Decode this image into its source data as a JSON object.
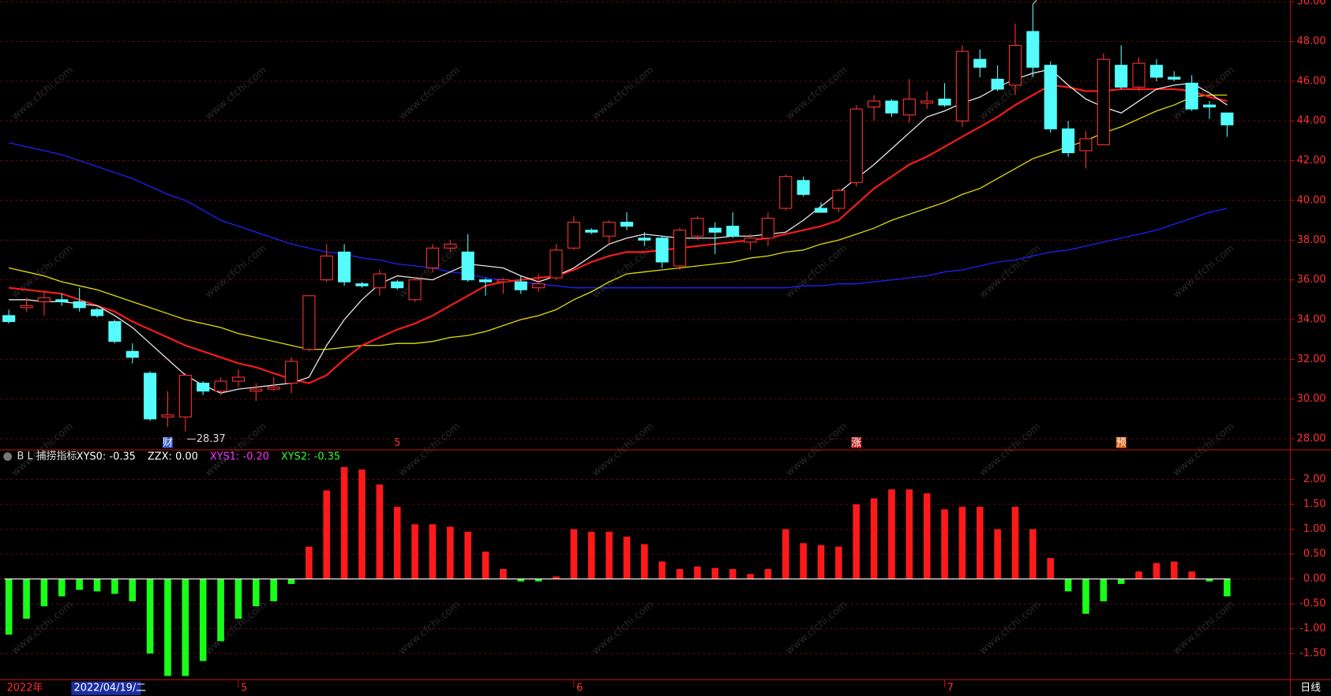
{
  "chart_data": [
    {
      "type": "candlestick",
      "up_color": "#ff3232",
      "down_color": "#54fcfc",
      "open": [
        34.2,
        34.6,
        34.9,
        35.0,
        34.9,
        34.5,
        33.9,
        32.4,
        31.3,
        29.1,
        29.1,
        30.8,
        30.4,
        30.9,
        30.4,
        30.5,
        30.8,
        32.5,
        36.0,
        37.4,
        35.8,
        35.6,
        35.9,
        35.0,
        36.6,
        37.6,
        37.4,
        36.0,
        35.9,
        35.9,
        35.6,
        36.1,
        37.6,
        38.5,
        38.2,
        38.9,
        38.1,
        38.1,
        36.7,
        38.2,
        38.6,
        38.7,
        37.9,
        38.1,
        39.6,
        41.0,
        39.6,
        39.6,
        40.9,
        44.7,
        45.0,
        44.3,
        44.9,
        45.1,
        44.0,
        47.1,
        46.1,
        45.8,
        48.5,
        46.8,
        43.6,
        42.5,
        42.8,
        46.8,
        45.7,
        46.8,
        46.2,
        45.9,
        44.8,
        44.4
      ],
      "high": [
        34.5,
        35.1,
        35.4,
        35.3,
        35.6,
        34.6,
        34.0,
        32.8,
        31.4,
        30.4,
        31.3,
        30.9,
        31.1,
        31.5,
        30.8,
        31.1,
        32.1,
        35.2,
        37.8,
        37.8,
        35.9,
        36.5,
        36.0,
        36.1,
        37.8,
        38.0,
        38.3,
        36.1,
        36.1,
        36.2,
        36.3,
        37.8,
        39.2,
        38.6,
        39.0,
        39.4,
        38.4,
        38.2,
        38.6,
        39.2,
        38.9,
        39.4,
        38.3,
        39.4,
        41.3,
        41.2,
        39.9,
        40.6,
        44.8,
        45.3,
        45.1,
        46.1,
        45.5,
        45.9,
        47.8,
        47.6,
        46.8,
        48.9,
        49.88,
        47.0,
        44.0,
        43.5,
        47.4,
        47.8,
        47.2,
        47.1,
        46.5,
        46.3,
        45.0,
        44.4
      ],
      "low": [
        33.8,
        34.4,
        34.2,
        34.7,
        34.4,
        34.1,
        32.8,
        31.8,
        28.9,
        28.6,
        28.37,
        30.2,
        30.2,
        30.6,
        29.9,
        30.4,
        30.3,
        32.4,
        35.9,
        35.7,
        35.6,
        35.2,
        35.5,
        34.9,
        36.4,
        37.4,
        35.9,
        35.2,
        35.3,
        35.3,
        35.4,
        36.0,
        37.5,
        38.3,
        37.8,
        38.5,
        37.7,
        36.6,
        36.5,
        38.0,
        37.3,
        38.1,
        37.5,
        37.7,
        39.5,
        40.2,
        39.4,
        39.4,
        40.7,
        44.0,
        44.2,
        43.9,
        44.6,
        44.7,
        43.7,
        46.2,
        45.5,
        45.3,
        46.2,
        43.4,
        42.2,
        41.6,
        42.8,
        45.6,
        45.5,
        46.0,
        46.0,
        44.5,
        44.1,
        43.2
      ],
      "close": [
        33.9,
        34.7,
        35.1,
        34.9,
        34.6,
        34.2,
        32.9,
        32.1,
        29.0,
        29.2,
        31.2,
        30.4,
        30.9,
        31.1,
        30.5,
        30.6,
        31.9,
        35.2,
        37.2,
        35.9,
        35.7,
        36.3,
        35.6,
        36.0,
        37.6,
        37.8,
        36.0,
        35.9,
        36.0,
        35.5,
        35.8,
        37.5,
        38.9,
        38.4,
        38.9,
        38.7,
        38.0,
        36.9,
        38.5,
        39.1,
        38.4,
        38.2,
        38.1,
        39.1,
        41.2,
        40.3,
        39.4,
        40.5,
        44.6,
        45.0,
        44.4,
        45.1,
        45.0,
        44.8,
        47.5,
        46.7,
        45.6,
        47.8,
        46.7,
        43.6,
        42.4,
        43.1,
        47.1,
        45.7,
        46.9,
        46.2,
        46.1,
        44.6,
        44.7,
        43.8
      ],
      "lines": [
        {
          "color": "#2020ff",
          "values": [
            42.9,
            42.7,
            42.5,
            42.3,
            42.0,
            41.7,
            41.4,
            41.1,
            40.7,
            40.3,
            40.0,
            39.5,
            39.0,
            38.7,
            38.4,
            38.1,
            37.8,
            37.6,
            37.4,
            37.3,
            37.1,
            37.0,
            36.8,
            36.7,
            36.6,
            36.4,
            36.3,
            36.1,
            36.0,
            35.9,
            35.8,
            35.7,
            35.6,
            35.6,
            35.6,
            35.6,
            35.6,
            35.6,
            35.6,
            35.6,
            35.6,
            35.6,
            35.6,
            35.6,
            35.6,
            35.7,
            35.7,
            35.8,
            35.8,
            35.9,
            36.0,
            36.1,
            36.2,
            36.4,
            36.5,
            36.7,
            36.9,
            37.0,
            37.2,
            37.4,
            37.5,
            37.7,
            37.9,
            38.1,
            38.3,
            38.5,
            38.8,
            39.1,
            39.4,
            39.6
          ]
        },
        {
          "color": "#e0e000",
          "values": [
            36.6,
            36.4,
            36.2,
            35.9,
            35.7,
            35.5,
            35.2,
            34.9,
            34.6,
            34.3,
            34.0,
            33.8,
            33.6,
            33.3,
            33.1,
            32.9,
            32.7,
            32.5,
            32.5,
            32.6,
            32.7,
            32.7,
            32.8,
            32.8,
            32.9,
            33.1,
            33.2,
            33.4,
            33.7,
            34.0,
            34.2,
            34.5,
            35.0,
            35.4,
            35.9,
            36.3,
            36.4,
            36.5,
            36.6,
            36.7,
            36.8,
            36.9,
            37.1,
            37.2,
            37.4,
            37.5,
            37.8,
            38.0,
            38.3,
            38.6,
            39.0,
            39.3,
            39.6,
            39.9,
            40.3,
            40.6,
            41.1,
            41.6,
            42.1,
            42.4,
            42.7,
            43.0,
            43.4,
            43.7,
            44.1,
            44.5,
            44.8,
            45.2,
            45.3,
            45.3
          ]
        },
        {
          "color": "#ff1a1a",
          "values": [
            35.6,
            35.5,
            35.4,
            35.3,
            35.0,
            34.7,
            34.4,
            33.9,
            33.5,
            33.1,
            32.7,
            32.4,
            32.1,
            31.8,
            31.6,
            31.3,
            31.0,
            30.8,
            31.2,
            32.0,
            32.7,
            33.1,
            33.5,
            33.8,
            34.2,
            34.7,
            35.2,
            35.7,
            35.9,
            36.0,
            36.1,
            36.2,
            36.5,
            36.9,
            37.2,
            37.4,
            37.4,
            37.5,
            37.6,
            37.7,
            37.8,
            37.9,
            38.0,
            38.1,
            38.3,
            38.5,
            38.7,
            39.0,
            39.8,
            40.6,
            41.2,
            41.8,
            42.2,
            42.7,
            43.2,
            43.7,
            44.2,
            44.8,
            45.3,
            45.8,
            45.7,
            45.5,
            45.5,
            45.6,
            45.6,
            45.6,
            45.6,
            45.5,
            45.2,
            45.0
          ]
        },
        {
          "color": "#e8e8e8",
          "values": [
            35.0,
            35.0,
            34.9,
            34.9,
            34.8,
            34.7,
            34.2,
            33.6,
            32.8,
            32.0,
            31.2,
            30.7,
            30.3,
            30.5,
            30.6,
            30.7,
            30.8,
            31.1,
            32.7,
            34.0,
            35.0,
            35.8,
            36.2,
            36.1,
            36.0,
            36.4,
            36.8,
            36.7,
            36.6,
            36.2,
            35.9,
            36.2,
            36.6,
            37.2,
            37.8,
            38.1,
            38.3,
            38.2,
            38.1,
            38.1,
            38.1,
            38.2,
            38.2,
            38.3,
            38.4,
            39.0,
            39.7,
            40.4,
            41.1,
            41.8,
            42.6,
            43.4,
            44.2,
            44.5,
            44.9,
            45.2,
            45.7,
            46.1,
            46.4,
            46.6,
            45.8,
            45.1,
            44.7,
            44.4,
            45.0,
            45.6,
            45.8,
            45.9,
            45.4,
            44.8
          ]
        }
      ],
      "ylim": [
        27.53,
        50.08
      ],
      "yticks": [
        {
          "value": 28,
          "label": "28.00"
        },
        {
          "value": 30,
          "label": "30.00"
        },
        {
          "value": 32,
          "label": "32.00"
        },
        {
          "value": 34,
          "label": "34.00"
        },
        {
          "value": 36,
          "label": "36.00"
        },
        {
          "value": 38,
          "label": "38.00"
        },
        {
          "value": 40,
          "label": "40.00"
        },
        {
          "value": 42,
          "label": "42.00"
        },
        {
          "value": 44,
          "label": "44.00"
        },
        {
          "value": 46,
          "label": "46.00"
        },
        {
          "value": 48,
          "label": "48.00"
        },
        {
          "value": 50,
          "label": "50.00"
        }
      ],
      "grid": true,
      "events": [
        {
          "index": 9,
          "label": "财",
          "color": "#3050c0"
        },
        {
          "index": 22,
          "label": "5",
          "color": "#000000"
        },
        {
          "index": 48,
          "label": "涨",
          "color": "#c02020"
        },
        {
          "index": 63,
          "label": "预",
          "color": "#d06010"
        }
      ],
      "categories": [
        null,
        null,
        null,
        null,
        null,
        null,
        null,
        null,
        null,
        null,
        null,
        null,
        null,
        "5",
        null,
        null,
        null,
        null,
        null,
        null,
        null,
        null,
        null,
        null,
        null,
        null,
        null,
        null,
        null,
        null,
        null,
        null,
        "6",
        null,
        null,
        null,
        null,
        null,
        null,
        null,
        null,
        null,
        null,
        null,
        null,
        null,
        null,
        null,
        null,
        null,
        null,
        null,
        null,
        "7",
        null,
        null,
        null,
        null,
        null,
        null,
        null,
        null,
        null,
        null,
        null,
        null,
        null,
        null,
        null,
        null
      ],
      "year_label": "2022年",
      "cursor_label": "2022/04/19/二",
      "period_label": "日线",
      "watermark": "www.cfchi.com"
    },
    {
      "type": "bar",
      "title": "B L 捕捞指标",
      "pos_color": "#ff1a1a",
      "neg_color": "#1aff1a",
      "readouts": [
        {
          "name": "XYS0:",
          "value": "-0.35",
          "color": "#ffffff"
        },
        {
          "name": "ZZX:",
          "value": "0.00",
          "color": "#ffffff"
        },
        {
          "name": "XYS1:",
          "value": "-0.20",
          "color": "#ff30ff"
        },
        {
          "name": "XYS2:",
          "value": "-0.35",
          "color": "#30ff30"
        }
      ],
      "values": [
        -1.12,
        -0.8,
        -0.55,
        -0.35,
        -0.22,
        -0.25,
        -0.3,
        -0.45,
        -1.5,
        -1.95,
        -1.95,
        -1.65,
        -1.25,
        -0.8,
        -0.55,
        -0.45,
        -0.1,
        0.65,
        1.78,
        2.25,
        2.2,
        1.9,
        1.45,
        1.1,
        1.1,
        1.05,
        0.95,
        0.55,
        0.2,
        -0.05,
        -0.05,
        0.05,
        1.0,
        0.95,
        0.95,
        0.85,
        0.7,
        0.35,
        0.2,
        0.25,
        0.22,
        0.2,
        0.1,
        0.2,
        1.0,
        0.72,
        0.68,
        0.65,
        1.5,
        1.62,
        1.8,
        1.8,
        1.72,
        1.4,
        1.45,
        1.45,
        1.0,
        1.45,
        1.0,
        0.42,
        -0.25,
        -0.7,
        -0.45,
        -0.1,
        0.15,
        0.32,
        0.35,
        0.15,
        -0.05,
        -0.35
      ],
      "ylim": [
        -2.01,
        2.34
      ],
      "yticks": [
        {
          "value": -1.5,
          "label": "-1.50"
        },
        {
          "value": -1,
          "label": "-1.00"
        },
        {
          "value": -0.5,
          "label": "-0.50"
        },
        {
          "value": 0,
          "label": "0.00"
        },
        {
          "value": 0.5,
          "label": "0.50"
        },
        {
          "value": 1,
          "label": "1.00"
        },
        {
          "value": 1.5,
          "label": "1.50"
        },
        {
          "value": 2,
          "label": "2.00"
        }
      ],
      "grid": true
    }
  ]
}
